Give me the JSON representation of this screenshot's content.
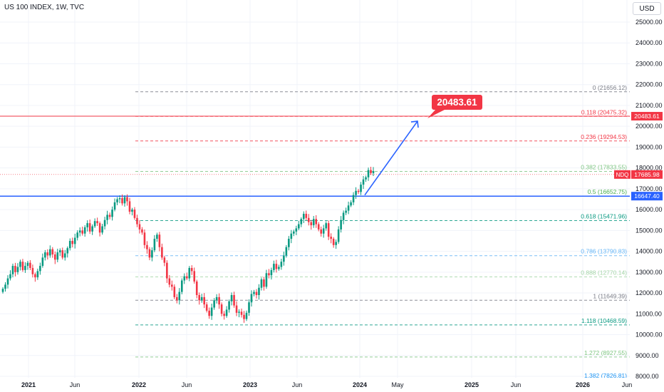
{
  "symbol_title": "US 100 INDEX, 1W, TVC",
  "currency": "USD",
  "target_label": "20483.61",
  "colors": {
    "up": "#089981",
    "down": "#f23645",
    "blue": "#2962ff",
    "red": "#f23645"
  },
  "price_tags": {
    "target": "20483.61",
    "ndq_symbol": "NDQ",
    "ndq_price": "17685.98",
    "blue_level": "16647.40"
  },
  "chart_data": {
    "type": "candlestick",
    "y_axis_ticks": [
      "25000.00",
      "24000.00",
      "23000.00",
      "22000.00",
      "21000.00",
      "20000.00",
      "19000.00",
      "18000.00",
      "17000.00",
      "16000.00",
      "15000.00",
      "14000.00",
      "13000.00",
      "12000.00",
      "11000.00",
      "10000.00",
      "9000.00",
      "8000.00"
    ],
    "x_axis_ticks": [
      "2021",
      "Jun",
      "2022",
      "Jun",
      "2023",
      "Jun",
      "2024",
      "May",
      "2025",
      "Jun",
      "2026",
      "Jun"
    ],
    "fib_levels": [
      {
        "label": "0 (21656.12)",
        "value": 21656.12,
        "color": "#787b86"
      },
      {
        "label": "0.118 (20475.32)",
        "value": 20475.32,
        "color": "#f23645"
      },
      {
        "label": "0.236 (19294.53)",
        "value": 19294.53,
        "color": "#f23645"
      },
      {
        "label": "0.382 (17833.55)",
        "value": 17833.55,
        "color": "#81c784"
      },
      {
        "label": "0.5 (16652.75)",
        "value": 16652.75,
        "color": "#4caf50"
      },
      {
        "label": "0.618 (15471.96)",
        "value": 15471.96,
        "color": "#089981"
      },
      {
        "label": "0.786 (13790.83)",
        "value": 13790.83,
        "color": "#64b5f6"
      },
      {
        "label": "0.888 (12770.14)",
        "value": 12770.14,
        "color": "#a5d6a7"
      },
      {
        "label": "1 (11649.39)",
        "value": 11649.39,
        "color": "#787b86"
      },
      {
        "label": "1.118 (10468.59)",
        "value": 10468.59,
        "color": "#089981"
      },
      {
        "label": "1.272 (8927.55)",
        "value": 8927.55,
        "color": "#81c784"
      },
      {
        "label": "1.382 (7826.81)",
        "value": 7826.81,
        "color": "#2196f3"
      }
    ],
    "horizontal_lines": {
      "target": 20483.61,
      "support": 16647.4,
      "last": 17685.98
    },
    "projection": {
      "from": 16700,
      "to": 20483.61
    },
    "closes": [
      12200,
      12400,
      12700,
      12900,
      13300,
      13000,
      13250,
      13500,
      13100,
      13300,
      13450,
      13200,
      12900,
      12750,
      13050,
      13300,
      13700,
      13950,
      13800,
      14100,
      13850,
      13600,
      13950,
      14050,
      13700,
      13900,
      14150,
      14500,
      14350,
      14650,
      14900,
      15000,
      14850,
      15150,
      15350,
      14950,
      15200,
      15450,
      15350,
      14900,
      15200,
      15500,
      15750,
      15650,
      16000,
      16350,
      16500,
      16550,
      16300,
      16600,
      16400,
      15900,
      16000,
      15600,
      15300,
      15050,
      14900,
      14300,
      14100,
      13700,
      14050,
      14600,
      14800,
      14200,
      13700,
      13450,
      12700,
      12400,
      12300,
      11800,
      11650,
      12050,
      12600,
      12800,
      12700,
      13200,
      13050,
      12550,
      11900,
      11650,
      11800,
      11450,
      11150,
      10900,
      11300,
      11650,
      11800,
      11450,
      11000,
      10900,
      11200,
      11600,
      11900,
      11400,
      11050,
      11100,
      10950,
      10750,
      11050,
      11550,
      11950,
      12050,
      11900,
      12250,
      12650,
      12300,
      12950,
      12850,
      13100,
      13400,
      13150,
      13250,
      13500,
      13800,
      14200,
      14600,
      14850,
      14950,
      15100,
      15300,
      15550,
      15800,
      15600,
      15400,
      15250,
      15550,
      15300,
      15050,
      14850,
      15100,
      15350,
      14700,
      14600,
      14300,
      14450,
      15050,
      15500,
      15850,
      15950,
      16200,
      16350,
      16700,
      16900,
      16850,
      17200,
      17450,
      17550,
      17900,
      17750,
      17850
    ]
  }
}
